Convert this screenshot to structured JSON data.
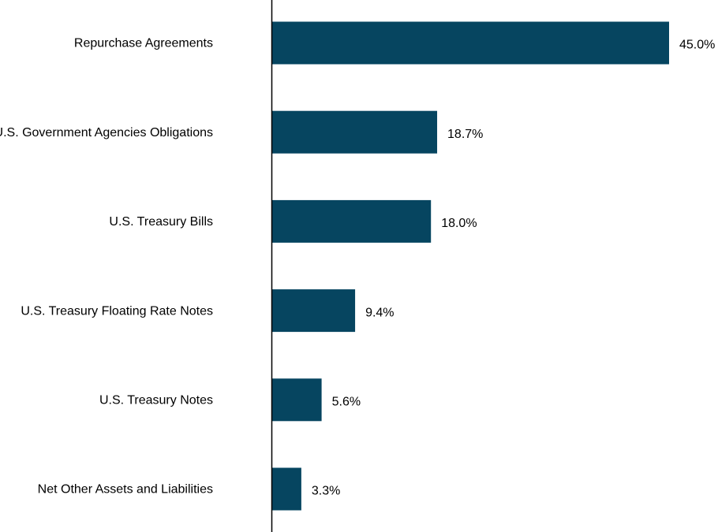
{
  "chart_data": {
    "type": "bar",
    "orientation": "horizontal",
    "categories": [
      "Repurchase Agreements",
      "U.S. Government Agencies Obligations",
      "U.S. Treasury Bills",
      "U.S. Treasury Floating Rate Notes",
      "U.S. Treasury Notes",
      "Net Other Assets and Liabilities"
    ],
    "values": [
      45.0,
      18.7,
      18.0,
      9.4,
      5.6,
      3.3
    ],
    "value_labels": [
      "45.0%",
      "18.7%",
      "18.0%",
      "9.4%",
      "5.6%",
      "3.3%"
    ],
    "value_unit": "%",
    "title": "",
    "xlabel": "",
    "ylabel": "",
    "xlim": [
      0,
      45
    ],
    "grid": false,
    "legend": "none",
    "bar_color": "#064560",
    "axis_color": "#000000"
  }
}
